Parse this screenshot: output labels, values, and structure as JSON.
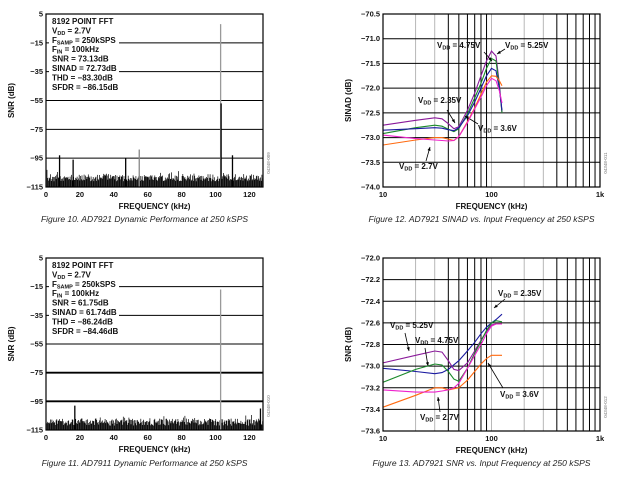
{
  "chart_data": [
    {
      "id": "fig10",
      "type": "bar",
      "kind": "fft",
      "caption": "Figure 10. AD7921 Dynamic Performance at 250 kSPS",
      "xlabel": "FREQUENCY (kHz)",
      "ylabel": "SNR (dB)",
      "xlim": [
        0,
        128
      ],
      "ylim": [
        -115,
        5
      ],
      "xticks": [
        0,
        20,
        40,
        60,
        80,
        100,
        120
      ],
      "yticks": [
        5,
        -15,
        -35,
        -55,
        -75,
        -95,
        -115
      ],
      "figure_id": "04348-009",
      "annotation": [
        {
          "text": "8192 POINT FFT"
        },
        {
          "text": "V",
          "sub": "DD",
          "rest": " = 2.7V"
        },
        {
          "text": "F",
          "sub": "SAMP",
          "rest": " = 250kSPS"
        },
        {
          "text": "F",
          "sub": "IN",
          "rest": " = 100kHz"
        },
        {
          "text": "SNR = 73.13dB"
        },
        {
          "text": "SINAD = 72.73dB"
        },
        {
          "text": "THD = −83.30dB"
        },
        {
          "text": "SFDR = −86.15dB"
        }
      ],
      "noise_floor": [
        -115,
        -103
      ],
      "spurs": [
        {
          "f": 8,
          "db": -93,
          "color": "#000000"
        },
        {
          "f": 16,
          "db": -96,
          "color": "#000000"
        },
        {
          "f": 47,
          "db": -95,
          "color": "#000000"
        },
        {
          "f": 55,
          "db": -89,
          "color": "#888888"
        },
        {
          "f": 103,
          "db": -2,
          "color": "#999999"
        },
        {
          "f": 103.3,
          "db": -57,
          "color": "#000000"
        },
        {
          "f": 110,
          "db": -93,
          "color": "#000000"
        }
      ]
    },
    {
      "id": "fig11",
      "type": "bar",
      "kind": "fft",
      "caption": "Figure 11. AD7911 Dynamic Performance at 250 kSPS",
      "xlabel": "FREQUENCY (kHz)",
      "ylabel": "SNR (dB)",
      "xlim": [
        0,
        128
      ],
      "ylim": [
        -115,
        5
      ],
      "xticks": [
        0,
        20,
        40,
        60,
        80,
        100,
        120
      ],
      "yticks": [
        5,
        -15,
        -35,
        -55,
        -75,
        -95,
        -115
      ],
      "figure_id": "04348-010",
      "annotation": [
        {
          "text": "8192 POINT FFT"
        },
        {
          "text": "V",
          "sub": "DD",
          "rest": " = 2.7V"
        },
        {
          "text": "F",
          "sub": "SAMP",
          "rest": " = 250kSPS"
        },
        {
          "text": "F",
          "sub": "IN",
          "rest": " = 100kHz"
        },
        {
          "text": "SNR = 61.75dB"
        },
        {
          "text": "SINAD = 61.74dB"
        },
        {
          "text": "THD = −86.24dB"
        },
        {
          "text": "SFDR = −84.46dB"
        }
      ],
      "noise_floor": [
        -115,
        -104
      ],
      "spurs": [
        {
          "f": 17,
          "db": -98,
          "color": "#000000"
        },
        {
          "f": 103,
          "db": -17,
          "color": "#999999"
        },
        {
          "f": 126.5,
          "db": -100,
          "color": "#000000"
        }
      ]
    },
    {
      "id": "fig12",
      "type": "line",
      "xscale": "log",
      "caption": "Figure 12. AD7921 SINAD vs. Input Frequency at 250 kSPS",
      "xlabel": "FREQUENCY (kHz)",
      "ylabel": "SINAD (dB)",
      "xlim": [
        10,
        1000
      ],
      "ylim": [
        -74.0,
        -70.5
      ],
      "xticks": [
        10,
        100,
        1000
      ],
      "xticklabels": [
        "10",
        "100",
        "1k"
      ],
      "yticks": [
        -70.5,
        -71.0,
        -71.5,
        -72.0,
        -72.5,
        -73.0,
        -73.5,
        -74.0
      ],
      "yticklabels": [
        "−70.5",
        "−71.0",
        "−71.5",
        "−72.0",
        "−72.5",
        "−73.0",
        "−73.5",
        "−74.0"
      ],
      "grid": true,
      "figure_id": "04348-011",
      "label_prefix": "V",
      "label_sub": "DD",
      "series": [
        {
          "name": " = 5.25V",
          "color": "#8a1a9a",
          "x": [
            10,
            20,
            30,
            35,
            40,
            45,
            50,
            60,
            70,
            80,
            90,
            100,
            110,
            118,
            125
          ],
          "y": [
            -72.75,
            -72.65,
            -72.6,
            -72.62,
            -72.72,
            -72.82,
            -72.78,
            -72.45,
            -72.1,
            -71.75,
            -71.45,
            -71.25,
            -71.35,
            -71.9,
            -72.5
          ]
        },
        {
          "name": " = 4.75V",
          "color": "#1a8a2a",
          "x": [
            10,
            20,
            30,
            35,
            40,
            45,
            50,
            60,
            70,
            80,
            90,
            100,
            110,
            118,
            125
          ],
          "y": [
            -72.92,
            -72.8,
            -72.75,
            -72.77,
            -72.83,
            -72.88,
            -72.82,
            -72.52,
            -72.2,
            -71.9,
            -71.6,
            -71.4,
            -71.45,
            -71.95,
            -72.5
          ]
        },
        {
          "name": " = 2.35V",
          "color": "#1a1aa0",
          "x": [
            10,
            20,
            30,
            35,
            40,
            45,
            50,
            60,
            70,
            80,
            90,
            100,
            110,
            118,
            125
          ],
          "y": [
            -72.85,
            -72.82,
            -72.8,
            -72.81,
            -72.84,
            -72.86,
            -72.8,
            -72.56,
            -72.28,
            -72.0,
            -71.75,
            -71.6,
            -71.65,
            -72.0,
            -72.45
          ]
        },
        {
          "name": " = 3.6V",
          "color": "#ff6a10",
          "x": [
            10,
            20,
            30,
            35,
            40,
            45,
            50,
            60,
            70,
            80,
            90,
            100,
            110,
            118,
            125
          ],
          "y": [
            -73.15,
            -73.05,
            -73.0,
            -73.0,
            -73.03,
            -73.06,
            -72.98,
            -72.68,
            -72.4,
            -72.12,
            -71.88,
            -71.75,
            -71.76,
            -71.85,
            -71.95
          ]
        },
        {
          "name": " = 2.7V",
          "color": "#ee22cc",
          "x": [
            10,
            20,
            30,
            35,
            40,
            45,
            50,
            60,
            70,
            80,
            90,
            100,
            110,
            118,
            125
          ],
          "y": [
            -72.95,
            -73.02,
            -73.05,
            -73.06,
            -73.07,
            -73.06,
            -72.98,
            -72.7,
            -72.42,
            -72.18,
            -71.95,
            -71.8,
            -71.85,
            -72.05,
            -72.3
          ]
        }
      ]
    },
    {
      "id": "fig13",
      "type": "line",
      "xscale": "log",
      "caption": "Figure 13. AD7921 SNR vs. Input Frequency at 250 kSPS",
      "xlabel": "FREQUENCY (kHz)",
      "ylabel": "SNR (dB)",
      "xlim": [
        10,
        1000
      ],
      "ylim": [
        -73.6,
        -72.0
      ],
      "xticks": [
        10,
        100,
        1000
      ],
      "xticklabels": [
        "10",
        "100",
        "1k"
      ],
      "yticks": [
        -72.0,
        -72.2,
        -72.4,
        -72.6,
        -72.8,
        -73.0,
        -73.2,
        -73.4,
        -73.6
      ],
      "yticklabels": [
        "−72.0",
        "−72.2",
        "−72.4",
        "−72.6",
        "−72.8",
        "−73.0",
        "−73.2",
        "−73.4",
        "−73.6"
      ],
      "grid": true,
      "figure_id": "04348-012",
      "label_prefix": "V",
      "label_sub": "DD",
      "series": [
        {
          "name": " = 2.35V",
          "color": "#1a1aa0",
          "x": [
            10,
            20,
            30,
            35,
            40,
            50,
            60,
            70,
            80,
            90,
            100,
            110,
            125
          ],
          "y": [
            -73.02,
            -73.05,
            -73.07,
            -73.06,
            -73.03,
            -72.95,
            -72.86,
            -72.78,
            -72.7,
            -72.64,
            -72.6,
            -72.57,
            -72.52
          ]
        },
        {
          "name": " = 5.25V",
          "color": "#8a1a9a",
          "x": [
            10,
            20,
            30,
            35,
            40,
            45,
            50,
            60,
            70,
            80,
            90,
            100,
            110,
            125
          ],
          "y": [
            -72.97,
            -72.9,
            -72.86,
            -72.87,
            -72.95,
            -73.03,
            -73.04,
            -72.97,
            -72.86,
            -72.76,
            -72.68,
            -72.62,
            -72.61,
            -72.61
          ]
        },
        {
          "name": " = 4.75V",
          "color": "#1a8a2a",
          "x": [
            10,
            20,
            30,
            35,
            40,
            45,
            50,
            60,
            70,
            80,
            90,
            100,
            110,
            125
          ],
          "y": [
            -73.15,
            -73.03,
            -72.98,
            -72.99,
            -73.05,
            -73.12,
            -73.14,
            -73.02,
            -72.88,
            -72.77,
            -72.67,
            -72.6,
            -72.58,
            -72.59
          ]
        },
        {
          "name": " = 3.6V",
          "color": "#ff6a10",
          "x": [
            10,
            20,
            30,
            35,
            40,
            50,
            60,
            70,
            80,
            90,
            100,
            110,
            125
          ],
          "y": [
            -73.38,
            -73.27,
            -73.2,
            -73.2,
            -73.22,
            -73.2,
            -73.13,
            -73.05,
            -72.98,
            -72.93,
            -72.9,
            -72.9,
            -72.9
          ]
        },
        {
          "name": " = 2.7V",
          "color": "#ee22cc",
          "x": [
            10,
            20,
            30,
            35,
            40,
            45,
            50,
            60,
            70,
            80,
            90,
            100,
            110,
            125
          ],
          "y": [
            -73.22,
            -73.24,
            -73.24,
            -73.23,
            -73.22,
            -73.2,
            -73.16,
            -73.02,
            -72.9,
            -72.8,
            -72.7,
            -72.63,
            -72.61,
            -72.61
          ]
        }
      ]
    }
  ]
}
